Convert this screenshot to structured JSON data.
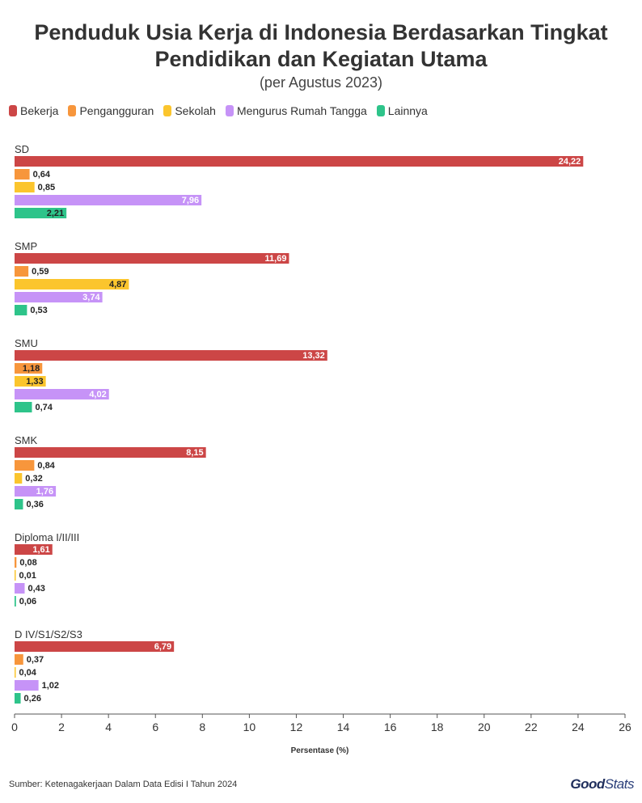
{
  "title": "Penduduk Usia Kerja di Indonesia Berdasarkan Tingkat Pendidikan dan Kegiatan Utama",
  "subtitle": "(per Agustus 2023)",
  "source": "Sumber: Ketenagakerjaan Dalam Data Edisi I Tahun 2024",
  "logo": {
    "good": "Good",
    "stats": "Stats"
  },
  "chart_data": {
    "type": "bar",
    "orientation": "horizontal",
    "xlabel": "Persentase (%)",
    "xlim": [
      0,
      26
    ],
    "xticks": [
      0,
      2,
      4,
      6,
      8,
      10,
      12,
      14,
      16,
      18,
      20,
      22,
      24,
      26
    ],
    "grid": false,
    "legend_position": "top-left",
    "categories": [
      "SD",
      "SMP",
      "SMU",
      "SMK",
      "Diploma I/II/III",
      "D IV/S1/S2/S3"
    ],
    "series": [
      {
        "name": "Bekerja",
        "color": "#cc4646",
        "label_inside": true,
        "values": [
          24.22,
          11.69,
          13.32,
          8.15,
          1.61,
          6.79
        ],
        "labels": [
          "24,22",
          "11,69",
          "13,32",
          "8,15",
          "1,61",
          "6,79"
        ]
      },
      {
        "name": "Pengangguran",
        "color": "#f7963c",
        "values": [
          0.64,
          0.59,
          1.18,
          0.84,
          0.08,
          0.37
        ],
        "labels": [
          "0,64",
          "0,59",
          "1,18",
          "0,84",
          "0,08",
          "0,37"
        ]
      },
      {
        "name": "Sekolah",
        "color": "#fbc52d",
        "values": [
          0.85,
          4.87,
          1.33,
          0.32,
          0.01,
          0.04
        ],
        "labels": [
          "0,85",
          "4,87",
          "1,33",
          "0,32",
          "0,01",
          "0,04"
        ]
      },
      {
        "name": "Mengurus Rumah Tangga",
        "color": "#c693f7",
        "values": [
          7.96,
          3.74,
          4.02,
          1.76,
          0.43,
          1.02
        ],
        "labels": [
          "7,96",
          "3,74",
          "4,02",
          "1,76",
          "0,43",
          "1,02"
        ]
      },
      {
        "name": "Lainnya",
        "color": "#2ec48a",
        "values": [
          2.21,
          0.53,
          0.74,
          0.36,
          0.06,
          0.26
        ],
        "labels": [
          "2,21",
          "0,53",
          "0,74",
          "0,36",
          "0,06",
          "0,26"
        ]
      }
    ]
  }
}
